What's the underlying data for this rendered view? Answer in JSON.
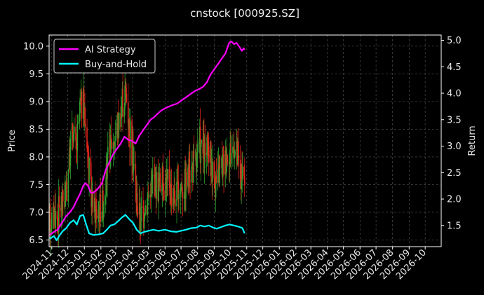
{
  "chart_data": {
    "type": "line",
    "title": "cnstock [000925.SZ]",
    "ylabel_left": "Price",
    "ylabel_right": "Return",
    "ylim_left": [
      6.38,
      10.2
    ],
    "ylim_right": [
      1.1,
      5.1
    ],
    "xlim": [
      "2024-10-27",
      "2026-10-31"
    ],
    "grid": true,
    "legend_position": "top-left",
    "x_ticks": [
      "2024-11",
      "2024-12",
      "2025-01",
      "2025-02",
      "2025-03",
      "2025-04",
      "2025-05",
      "2025-06",
      "2025-07",
      "2025-08",
      "2025-09",
      "2025-10",
      "2025-11",
      "2025-12",
      "2026-01",
      "2026-02",
      "2026-03",
      "2026-04",
      "2026-05",
      "2026-06",
      "2026-07",
      "2026-08",
      "2026-09",
      "2026-10"
    ],
    "y_ticks_left": [
      6.5,
      7.0,
      7.5,
      8.0,
      8.5,
      9.0,
      9.5,
      10.0
    ],
    "y_ticks_right": [
      1.5,
      2.0,
      2.5,
      3.0,
      3.5,
      4.0,
      4.5,
      5.0
    ],
    "colors": {
      "up": "#2ea02e",
      "down": "#e0251b",
      "ai": "#ff00ff",
      "bh": "#00f5ff",
      "grid": "#555555",
      "axis": "#ffffff"
    },
    "price_anchors": [
      [
        "2024-10-28",
        6.8
      ],
      [
        "2024-11-05",
        7.0
      ],
      [
        "2024-11-12",
        6.9
      ],
      [
        "2024-11-20",
        7.2
      ],
      [
        "2024-11-28",
        7.4
      ],
      [
        "2024-12-03",
        7.9
      ],
      [
        "2024-12-10",
        8.5
      ],
      [
        "2024-12-17",
        8.1
      ],
      [
        "2024-12-24",
        8.9
      ],
      [
        "2024-12-30",
        9.0
      ],
      [
        "2025-01-06",
        8.3
      ],
      [
        "2025-01-13",
        7.3
      ],
      [
        "2025-01-20",
        7.0
      ],
      [
        "2025-01-27",
        7.0
      ],
      [
        "2025-02-05",
        7.2
      ],
      [
        "2025-02-12",
        7.7
      ],
      [
        "2025-02-19",
        8.2
      ],
      [
        "2025-02-26",
        8.3
      ],
      [
        "2025-03-05",
        8.6
      ],
      [
        "2025-03-12",
        9.0
      ],
      [
        "2025-03-19",
        9.2
      ],
      [
        "2025-03-26",
        8.6
      ],
      [
        "2025-04-02",
        8.0
      ],
      [
        "2025-04-09",
        7.2
      ],
      [
        "2025-04-16",
        6.9
      ],
      [
        "2025-04-23",
        7.1
      ],
      [
        "2025-05-01",
        7.3
      ],
      [
        "2025-05-10",
        7.6
      ],
      [
        "2025-05-20",
        7.5
      ],
      [
        "2025-06-01",
        7.6
      ],
      [
        "2025-06-12",
        7.4
      ],
      [
        "2025-06-22",
        7.3
      ],
      [
        "2025-07-01",
        7.5
      ],
      [
        "2025-07-10",
        7.6
      ],
      [
        "2025-07-20",
        7.8
      ],
      [
        "2025-07-30",
        7.9
      ],
      [
        "2025-08-06",
        8.2
      ],
      [
        "2025-08-14",
        8.0
      ],
      [
        "2025-08-22",
        8.1
      ],
      [
        "2025-08-30",
        7.7
      ],
      [
        "2025-09-06",
        7.5
      ],
      [
        "2025-09-14",
        7.8
      ],
      [
        "2025-09-22",
        8.0
      ],
      [
        "2025-09-30",
        8.1
      ],
      [
        "2025-10-08",
        8.2
      ],
      [
        "2025-10-16",
        7.9
      ],
      [
        "2025-10-24",
        7.5
      ],
      [
        "2025-10-28",
        7.6
      ]
    ],
    "series": [
      {
        "name": "AI Strategy",
        "axis": "right",
        "points": [
          [
            "2024-10-28",
            1.32
          ],
          [
            "2024-11-05",
            1.38
          ],
          [
            "2024-11-12",
            1.42
          ],
          [
            "2024-11-20",
            1.55
          ],
          [
            "2024-11-28",
            1.68
          ],
          [
            "2024-12-05",
            1.75
          ],
          [
            "2024-12-12",
            1.85
          ],
          [
            "2024-12-18",
            1.98
          ],
          [
            "2024-12-24",
            2.1
          ],
          [
            "2024-12-30",
            2.25
          ],
          [
            "2025-01-03",
            2.3
          ],
          [
            "2025-01-08",
            2.25
          ],
          [
            "2025-01-13",
            2.12
          ],
          [
            "2025-01-18",
            2.12
          ],
          [
            "2025-01-25",
            2.18
          ],
          [
            "2025-02-03",
            2.3
          ],
          [
            "2025-02-10",
            2.55
          ],
          [
            "2025-02-17",
            2.7
          ],
          [
            "2025-02-24",
            2.85
          ],
          [
            "2025-03-03",
            2.95
          ],
          [
            "2025-03-10",
            3.05
          ],
          [
            "2025-03-17",
            3.18
          ],
          [
            "2025-03-24",
            3.12
          ],
          [
            "2025-03-31",
            3.1
          ],
          [
            "2025-04-07",
            3.05
          ],
          [
            "2025-04-14",
            3.2
          ],
          [
            "2025-04-21",
            3.3
          ],
          [
            "2025-04-28",
            3.4
          ],
          [
            "2025-05-05",
            3.5
          ],
          [
            "2025-05-12",
            3.55
          ],
          [
            "2025-05-19",
            3.62
          ],
          [
            "2025-05-26",
            3.68
          ],
          [
            "2025-06-02",
            3.72
          ],
          [
            "2025-06-09",
            3.75
          ],
          [
            "2025-06-16",
            3.78
          ],
          [
            "2025-06-23",
            3.8
          ],
          [
            "2025-06-30",
            3.85
          ],
          [
            "2025-07-07",
            3.9
          ],
          [
            "2025-07-14",
            3.95
          ],
          [
            "2025-07-21",
            4.0
          ],
          [
            "2025-07-28",
            4.05
          ],
          [
            "2025-08-04",
            4.08
          ],
          [
            "2025-08-11",
            4.12
          ],
          [
            "2025-08-18",
            4.2
          ],
          [
            "2025-08-25",
            4.35
          ],
          [
            "2025-09-01",
            4.45
          ],
          [
            "2025-09-08",
            4.55
          ],
          [
            "2025-09-15",
            4.65
          ],
          [
            "2025-09-22",
            4.75
          ],
          [
            "2025-09-29",
            4.95
          ],
          [
            "2025-10-03",
            4.98
          ],
          [
            "2025-10-08",
            4.93
          ],
          [
            "2025-10-13",
            4.95
          ],
          [
            "2025-10-18",
            4.88
          ],
          [
            "2025-10-23",
            4.8
          ],
          [
            "2025-10-26",
            4.85
          ],
          [
            "2025-10-28",
            4.82
          ]
        ]
      },
      {
        "name": "Buy-and-Hold",
        "axis": "right",
        "points": [
          [
            "2024-10-28",
            1.25
          ],
          [
            "2024-11-05",
            1.3
          ],
          [
            "2024-11-10",
            1.22
          ],
          [
            "2024-11-16",
            1.32
          ],
          [
            "2024-11-22",
            1.4
          ],
          [
            "2024-11-28",
            1.45
          ],
          [
            "2024-12-05",
            1.55
          ],
          [
            "2024-12-12",
            1.6
          ],
          [
            "2024-12-18",
            1.52
          ],
          [
            "2024-12-24",
            1.68
          ],
          [
            "2024-12-30",
            1.7
          ],
          [
            "2025-01-05",
            1.5
          ],
          [
            "2025-01-10",
            1.35
          ],
          [
            "2025-01-18",
            1.32
          ],
          [
            "2025-01-27",
            1.33
          ],
          [
            "2025-02-05",
            1.35
          ],
          [
            "2025-02-12",
            1.42
          ],
          [
            "2025-02-19",
            1.5
          ],
          [
            "2025-02-26",
            1.52
          ],
          [
            "2025-03-05",
            1.58
          ],
          [
            "2025-03-12",
            1.65
          ],
          [
            "2025-03-19",
            1.7
          ],
          [
            "2025-03-26",
            1.62
          ],
          [
            "2025-04-02",
            1.55
          ],
          [
            "2025-04-09",
            1.42
          ],
          [
            "2025-04-16",
            1.35
          ],
          [
            "2025-04-23",
            1.38
          ],
          [
            "2025-05-01",
            1.4
          ],
          [
            "2025-05-10",
            1.42
          ],
          [
            "2025-05-20",
            1.4
          ],
          [
            "2025-06-01",
            1.42
          ],
          [
            "2025-06-12",
            1.39
          ],
          [
            "2025-06-22",
            1.38
          ],
          [
            "2025-07-01",
            1.4
          ],
          [
            "2025-07-10",
            1.42
          ],
          [
            "2025-07-20",
            1.45
          ],
          [
            "2025-07-30",
            1.46
          ],
          [
            "2025-08-06",
            1.5
          ],
          [
            "2025-08-14",
            1.48
          ],
          [
            "2025-08-22",
            1.5
          ],
          [
            "2025-08-30",
            1.46
          ],
          [
            "2025-09-06",
            1.44
          ],
          [
            "2025-09-14",
            1.47
          ],
          [
            "2025-09-22",
            1.5
          ],
          [
            "2025-09-30",
            1.52
          ],
          [
            "2025-10-08",
            1.5
          ],
          [
            "2025-10-16",
            1.48
          ],
          [
            "2025-10-24",
            1.45
          ],
          [
            "2025-10-28",
            1.35
          ]
        ]
      }
    ]
  }
}
